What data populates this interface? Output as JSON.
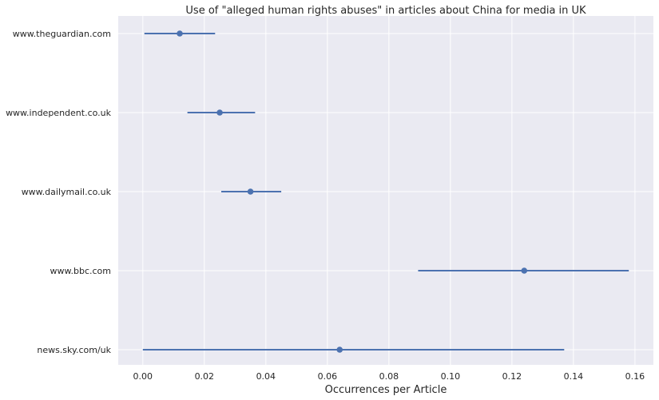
{
  "chart_data": {
    "type": "pointplot",
    "title": "Use of \"alleged human rights abuses\" in articles about China for media in UK",
    "xlabel": "Occurrences per Article",
    "ylabel": "",
    "xlim": [
      -0.008,
      0.166
    ],
    "xticks": [
      0.0,
      0.02,
      0.04,
      0.06,
      0.08,
      0.1,
      0.12,
      0.14,
      0.16
    ],
    "xtick_labels": [
      "0.00",
      "0.02",
      "0.04",
      "0.06",
      "0.08",
      "0.10",
      "0.12",
      "0.14",
      "0.16"
    ],
    "grid": true,
    "categories": [
      "www.theguardian.com",
      "www.independent.co.uk",
      "www.dailymail.co.uk",
      "www.bbc.com",
      "news.sky.com/uk"
    ],
    "values": [
      0.012,
      0.025,
      0.035,
      0.124,
      0.064
    ],
    "ci_low": [
      0.0005,
      0.0145,
      0.0255,
      0.0895,
      0.0
    ],
    "ci_high": [
      0.0235,
      0.0365,
      0.045,
      0.158,
      0.137
    ],
    "colors": {
      "background": "#EAEAF2",
      "grid": "#FFFFFF",
      "series": "#4C72B0",
      "text": "#262626"
    }
  }
}
